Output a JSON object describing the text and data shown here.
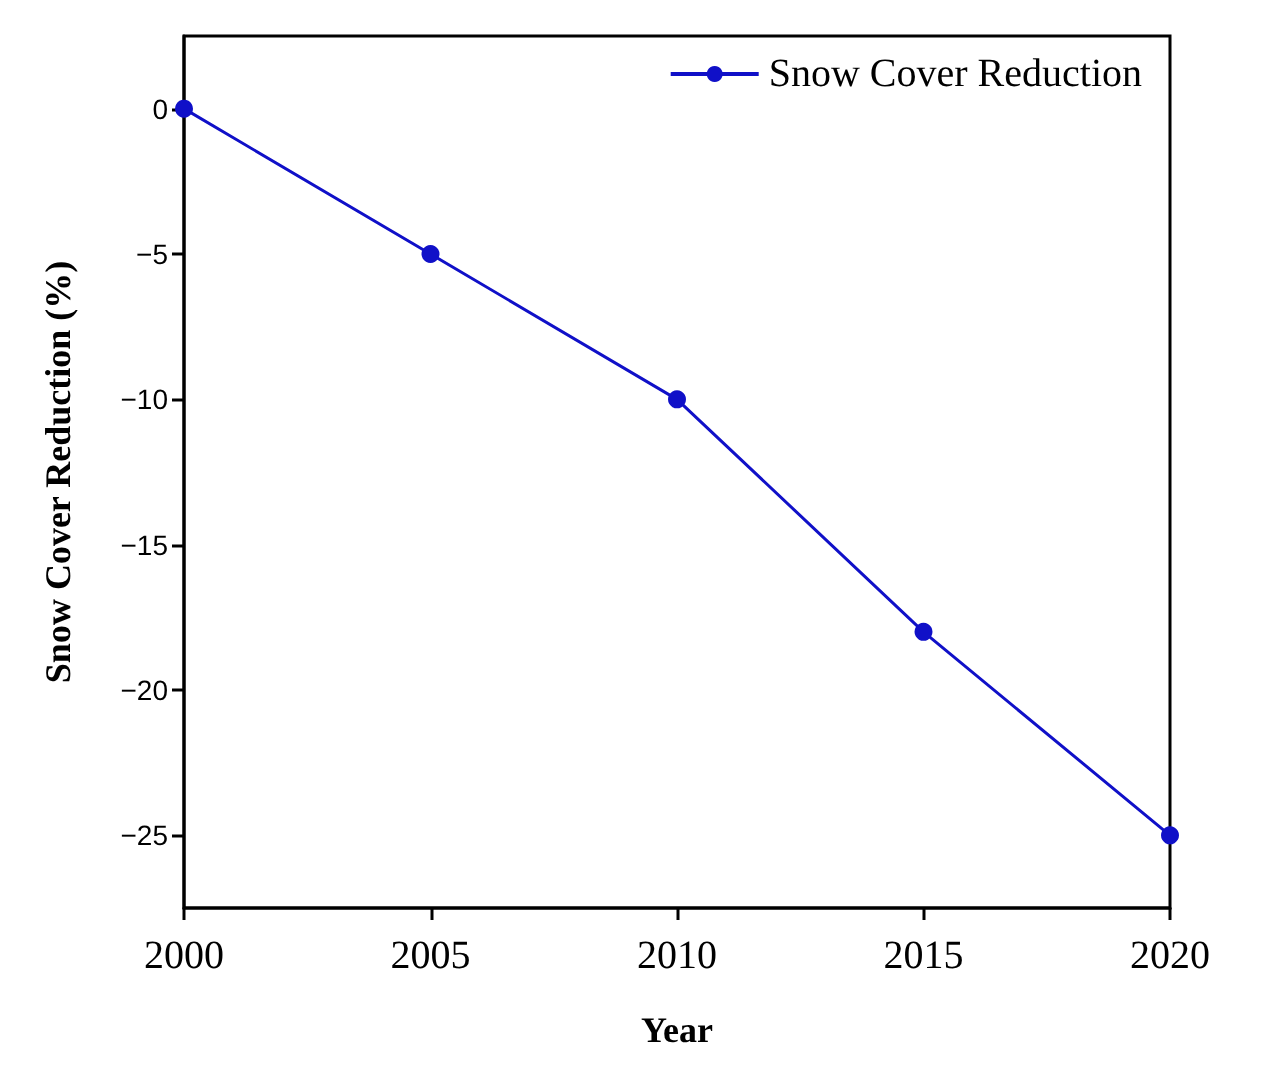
{
  "chart_data": {
    "type": "line",
    "xlabel": "Year",
    "ylabel": "Snow Cover Reduction (%)",
    "x": [
      2000,
      2005,
      2010,
      2015,
      2020
    ],
    "series": [
      {
        "name": "Snow Cover Reduction",
        "color": "#1010c8",
        "values": [
          0,
          -5,
          -10,
          -18,
          -25
        ]
      }
    ],
    "xlim": [
      2000,
      2020
    ],
    "xticks": [
      2000,
      2005,
      2010,
      2015,
      2020
    ],
    "ylim": [
      -27.5,
      2.5
    ],
    "yticks": [
      -25,
      -20,
      -15,
      -10,
      -5,
      0
    ],
    "grid": false,
    "legend": "top right",
    "marker": "circle",
    "line_style": "solid"
  }
}
